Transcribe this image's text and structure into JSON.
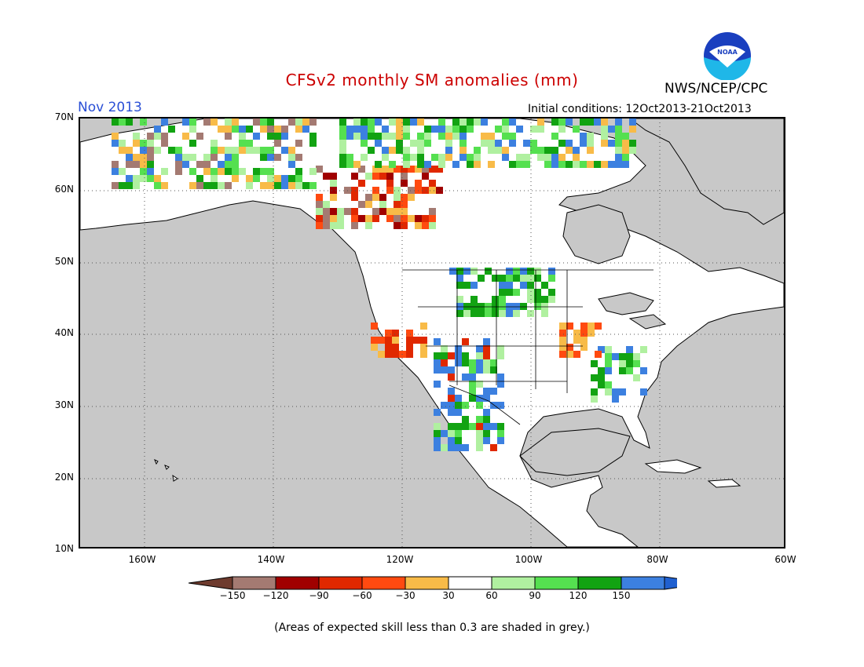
{
  "header": {
    "title": "CFSv2 monthly SM anomalies (mm)",
    "title_color": "#cc0000",
    "month": "Nov 2013",
    "month_color": "#2a4fd6",
    "initial_conditions": "Initial conditions: 12Oct2013-21Oct2013",
    "agency": "NWS/NCEP/CPC",
    "logo_text": "NOAA"
  },
  "map": {
    "region": "North America",
    "lat_labels": [
      "70N",
      "60N",
      "50N",
      "40N",
      "30N",
      "20N",
      "10N"
    ],
    "lon_labels": [
      "160W",
      "140W",
      "120W",
      "100W",
      "80W",
      "60W"
    ],
    "land_color": "#ffffff",
    "ocean_color": "#c8c8c8",
    "grid_style": "dotted"
  },
  "colorbar": {
    "labels": [
      "−150",
      "−120",
      "−90",
      "−60",
      "−30",
      "30",
      "60",
      "90",
      "120",
      "150"
    ],
    "colors": [
      "#6e3b2e",
      "#a47a72",
      "#a00000",
      "#e02800",
      "#ff4a10",
      "#f8bb48",
      "#ffffff",
      "#b0f0a0",
      "#55e050",
      "#12a312",
      "#3c80e0",
      "#2060d0"
    ]
  },
  "footnote": "(Areas of expected skill less than 0.3 are shaded in grey.)"
}
